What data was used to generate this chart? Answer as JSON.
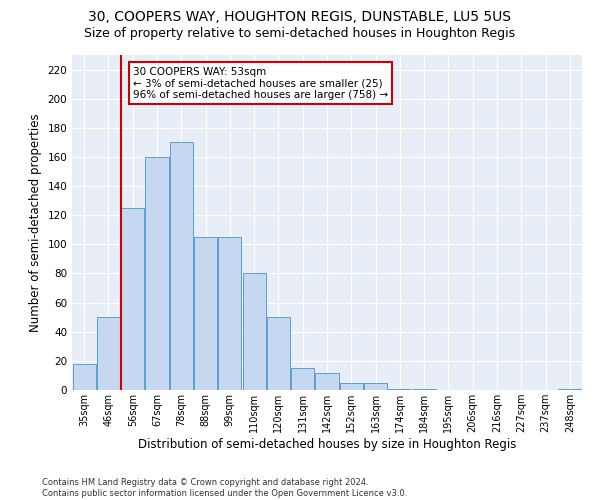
{
  "title1": "30, COOPERS WAY, HOUGHTON REGIS, DUNSTABLE, LU5 5US",
  "title2": "Size of property relative to semi-detached houses in Houghton Regis",
  "xlabel": "Distribution of semi-detached houses by size in Houghton Regis",
  "ylabel": "Number of semi-detached properties",
  "footnote": "Contains HM Land Registry data © Crown copyright and database right 2024.\nContains public sector information licensed under the Open Government Licence v3.0.",
  "annotation_title": "30 COOPERS WAY: 53sqm",
  "annotation_line1": "← 3% of semi-detached houses are smaller (25)",
  "annotation_line2": "96% of semi-detached houses are larger (758) →",
  "categories": [
    "35sqm",
    "46sqm",
    "56sqm",
    "67sqm",
    "78sqm",
    "88sqm",
    "99sqm",
    "110sqm",
    "120sqm",
    "131sqm",
    "142sqm",
    "152sqm",
    "163sqm",
    "174sqm",
    "184sqm",
    "195sqm",
    "206sqm",
    "216sqm",
    "227sqm",
    "237sqm",
    "248sqm"
  ],
  "values": [
    18,
    50,
    125,
    160,
    170,
    105,
    105,
    80,
    50,
    15,
    12,
    5,
    5,
    1,
    1,
    0,
    0,
    0,
    0,
    0,
    1
  ],
  "bar_color": "#c5d8f0",
  "bar_edge_color": "#5a9fd4",
  "marker_color": "#cc0000",
  "ylim": [
    0,
    230
  ],
  "yticks": [
    0,
    20,
    40,
    60,
    80,
    100,
    120,
    140,
    160,
    180,
    200,
    220
  ],
  "background_color": "#e8eef8",
  "grid_color": "#ffffff",
  "title1_fontsize": 10,
  "title2_fontsize": 9,
  "xlabel_fontsize": 8.5,
  "ylabel_fontsize": 8.5,
  "annotation_fontsize": 7.5,
  "annotation_box_color": "#ffffff",
  "annotation_box_edge": "#cc0000",
  "footnote_fontsize": 6
}
